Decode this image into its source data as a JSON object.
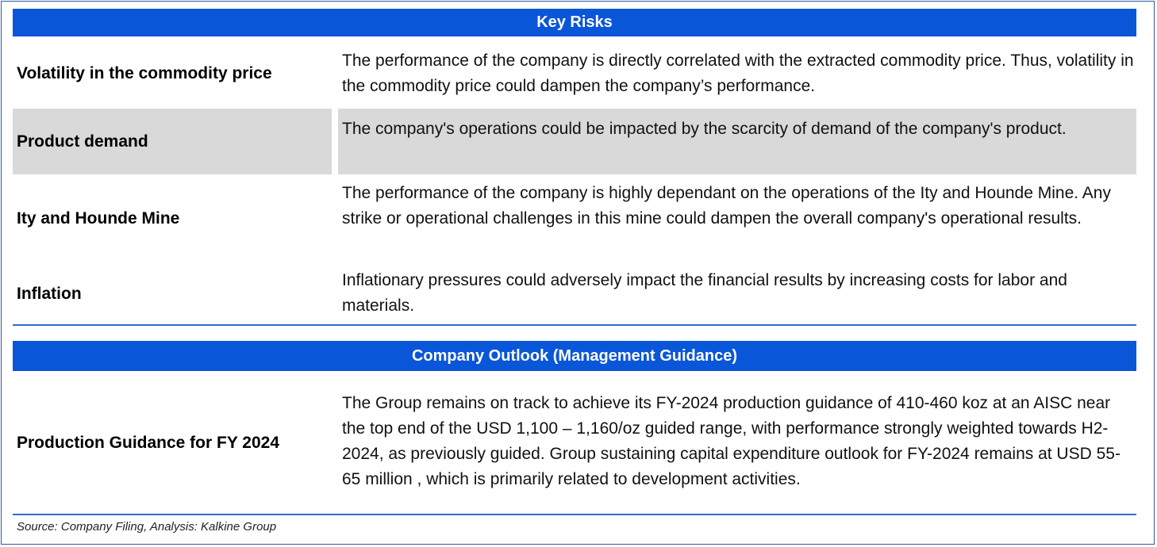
{
  "key_risks": {
    "title": "Key Risks",
    "rows": [
      {
        "label": "Volatility in the commodity price",
        "text": "The performance of the company is directly correlated with the extracted commodity price. Thus, volatility in the commodity price could dampen the company’s performance."
      },
      {
        "label": "Product demand",
        "text": "The company's operations could be impacted by the scarcity of demand of the company's product."
      },
      {
        "label": "Ity and Hounde Mine",
        "text": "The performance of the company is highly dependant on the operations of the Ity and Hounde Mine. Any strike or operational challenges in this mine could dampen the overall company's operational results."
      },
      {
        "label": "Inflation",
        "text": "Inflationary pressures could adversely impact the financial results by increasing costs for labor and materials."
      }
    ]
  },
  "outlook": {
    "title": "Company Outlook (Management Guidance)",
    "rows": [
      {
        "label": "Production Guidance for  FY 2024",
        "text": "The Group remains on track to achieve its FY-2024 production guidance of 410-460 koz at an AISC near the top end of the USD 1,100 – 1,160/oz guided range, with performance strongly weighted towards H2-2024, as previously guided. Group sustaining capital expenditure outlook for FY-2024 remains at USD 55- 65 million , which is primarily related to  development activities."
      }
    ]
  },
  "source": "Source: Company Filing, Analysis: Kalkine Group",
  "colors": {
    "header_bg": "#0a56d8",
    "shaded_row": "#d9d9d9",
    "rule": "#2f6bd0"
  }
}
